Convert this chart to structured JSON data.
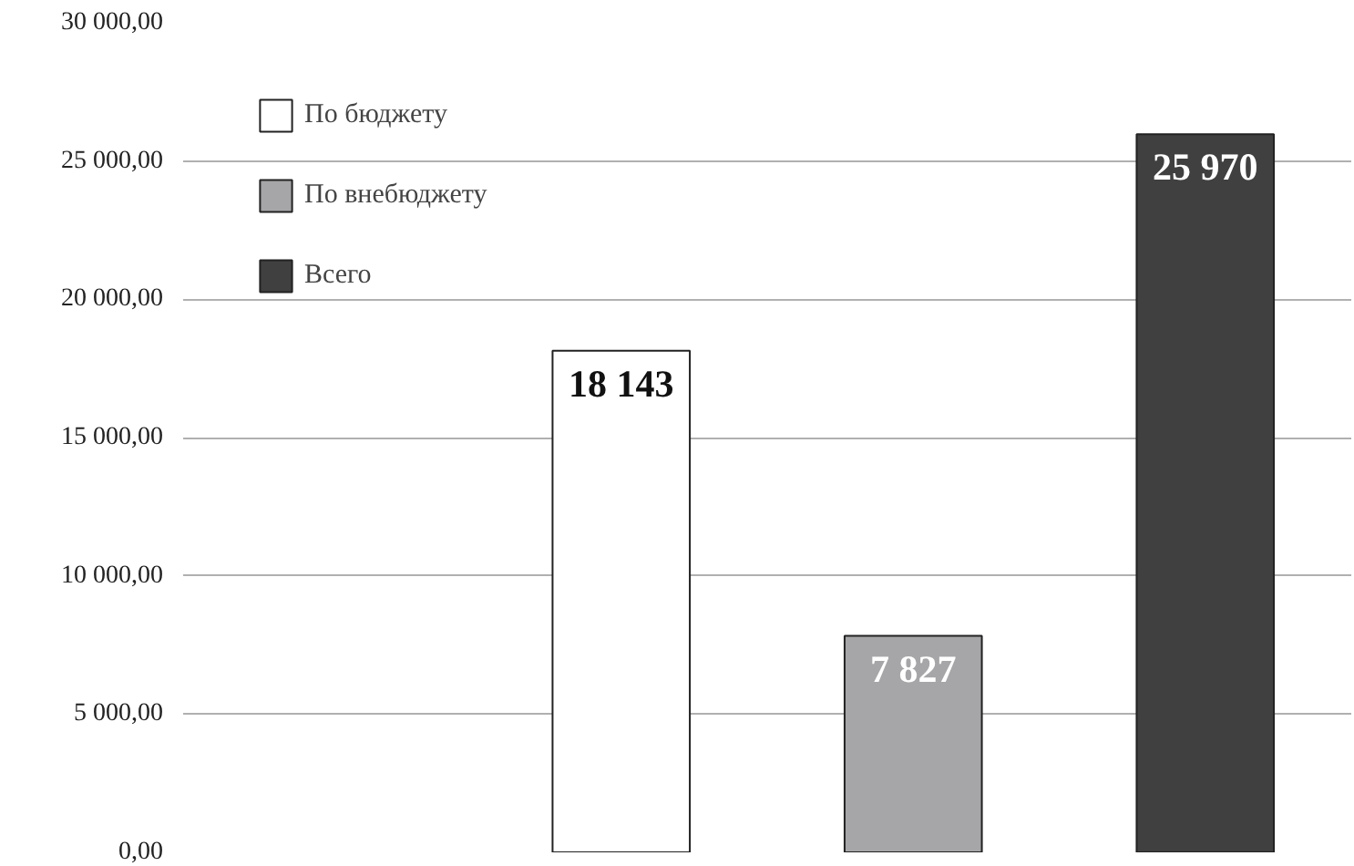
{
  "chart_data": {
    "type": "bar",
    "categories": [
      null,
      null,
      null,
      null
    ],
    "series": [
      {
        "name": "По бюджету",
        "color": "#ffffff",
        "values": [
          null,
          18143,
          null,
          null
        ]
      },
      {
        "name": "По внебюджету",
        "color": "#a6a6a8",
        "values": [
          null,
          null,
          7827,
          null
        ]
      },
      {
        "name": "Всего",
        "color": "#404040",
        "values": [
          null,
          null,
          null,
          25970
        ]
      }
    ],
    "ylim": [
      0,
      30000
    ],
    "yticks": [
      {
        "value": 0,
        "label": "0,00"
      },
      {
        "value": 5000,
        "label": "5 000,00"
      },
      {
        "value": 10000,
        "label": "10 000,00"
      },
      {
        "value": 15000,
        "label": "15 000,00"
      },
      {
        "value": 20000,
        "label": "20 000,00"
      },
      {
        "value": 25000,
        "label": "25 000,00"
      },
      {
        "value": 30000,
        "label": "30 000,00"
      }
    ],
    "grid": "y",
    "legend": "top left",
    "data_labels": true,
    "tick_labels": "y"
  }
}
